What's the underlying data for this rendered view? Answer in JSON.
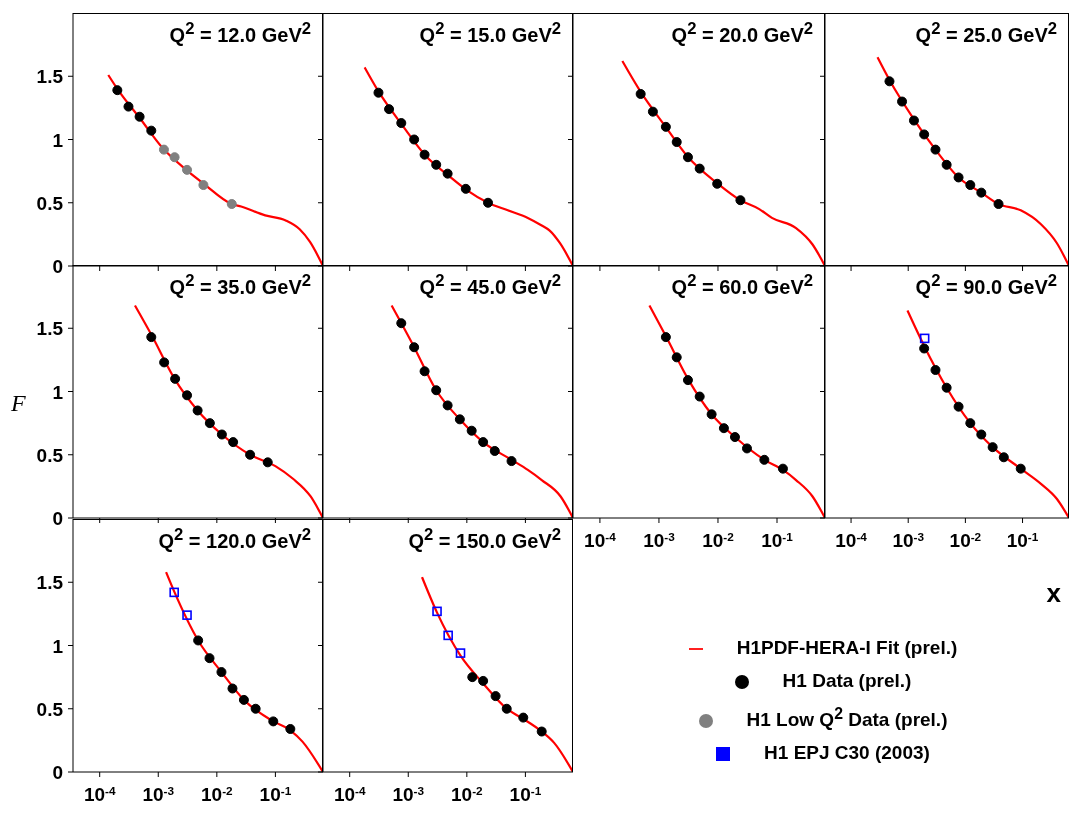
{
  "chart_data": [
    {
      "type": "scatter",
      "title": "Q$^{2}$ = 12.0 GeV$^{2}$",
      "log": "x",
      "xlim": [
        3.5e-05,
        0.65
      ],
      "ylim": [
        0,
        2
      ],
      "xticks": [
        {
          "value": 0.0001,
          "label": null
        },
        {
          "value": 0.001,
          "label": null
        },
        {
          "value": 0.01,
          "label": null
        },
        {
          "value": 0.1,
          "label": null
        }
      ],
      "yticks": [
        0,
        0.5,
        1,
        1.5
      ],
      "tick_labels": "y",
      "series": [
        {
          "type": "line",
          "color": "#ff0000",
          "x": [
            0.00014,
            0.0002,
            0.0005,
            0.0012,
            0.003,
            0.006,
            0.018,
            0.026,
            0.067,
            0.15,
            0.26,
            0.39,
            0.65
          ],
          "values": [
            1.51,
            1.4,
            1.16,
            0.93,
            0.76,
            0.65,
            0.49,
            0.47,
            0.4,
            0.36,
            0.29,
            0.19,
            0
          ]
        },
        {
          "marker": "circle",
          "color": "#000000",
          "x": [
            0.0002,
            0.00031,
            0.00048,
            0.00076
          ],
          "values": [
            1.39,
            1.26,
            1.18,
            1.07
          ]
        },
        {
          "marker": "circle",
          "color": "#808080",
          "x": [
            0.00125,
            0.0019,
            0.0031,
            0.0059,
            0.018
          ],
          "values": [
            0.92,
            0.86,
            0.76,
            0.64,
            0.49
          ]
        }
      ]
    },
    {
      "type": "scatter",
      "title": "Q$^{2}$ = 15.0 GeV$^{2}$",
      "log": "x",
      "xlim": [
        3.5e-05,
        0.65
      ],
      "ylim": [
        0,
        2
      ],
      "xticks": [
        {
          "value": 0.0001,
          "label": null
        },
        {
          "value": 0.001,
          "label": null
        },
        {
          "value": 0.01,
          "label": null
        },
        {
          "value": 0.1,
          "label": null
        }
      ],
      "yticks": [
        0,
        0.5,
        1,
        1.5
      ],
      "tick_labels": false,
      "series": [
        {
          "type": "line",
          "color": "#ff0000",
          "x": [
            0.00018,
            0.00031,
            0.0008,
            0.002,
            0.005,
            0.01,
            0.023,
            0.05,
            0.11,
            0.19,
            0.26,
            0.39,
            0.65
          ],
          "values": [
            1.57,
            1.38,
            1.11,
            0.87,
            0.71,
            0.6,
            0.5,
            0.44,
            0.38,
            0.32,
            0.28,
            0.18,
            0
          ]
        },
        {
          "marker": "circle",
          "color": "#000000",
          "x": [
            0.00031,
            0.00047,
            0.00076,
            0.00126,
            0.0019,
            0.003,
            0.0047,
            0.0096,
            0.023
          ],
          "values": [
            1.37,
            1.24,
            1.13,
            1.0,
            0.88,
            0.8,
            0.73,
            0.61,
            0.5
          ]
        }
      ]
    },
    {
      "type": "scatter",
      "title": "Q$^{2}$ = 20.0 GeV$^{2}$",
      "log": "x",
      "xlim": [
        3.5e-05,
        0.65
      ],
      "ylim": [
        0,
        2
      ],
      "xticks": [
        {
          "value": 0.0001,
          "label": null
        },
        {
          "value": 0.001,
          "label": null
        },
        {
          "value": 0.01,
          "label": null
        },
        {
          "value": 0.1,
          "label": null
        }
      ],
      "yticks": [
        0,
        0.5,
        1,
        1.5
      ],
      "tick_labels": false,
      "series": [
        {
          "type": "line",
          "color": "#ff0000",
          "x": [
            0.00024,
            0.0005,
            0.0013,
            0.003,
            0.01,
            0.024,
            0.05,
            0.082,
            0.21,
            0.4,
            0.65
          ],
          "values": [
            1.62,
            1.37,
            1.1,
            0.87,
            0.65,
            0.52,
            0.45,
            0.38,
            0.3,
            0.17,
            0
          ]
        },
        {
          "marker": "circle",
          "color": "#000000",
          "x": [
            0.00049,
            0.00079,
            0.00131,
            0.002,
            0.0031,
            0.0049,
            0.0097,
            0.024
          ],
          "values": [
            1.36,
            1.22,
            1.1,
            0.98,
            0.86,
            0.77,
            0.65,
            0.52
          ]
        }
      ]
    },
    {
      "type": "scatter",
      "title": "Q$^{2}$ = 25.0 GeV$^{2}$",
      "log": "x",
      "xlim": [
        3.5e-05,
        0.65
      ],
      "ylim": [
        0,
        2
      ],
      "xticks": [
        {
          "value": 0.0001,
          "label": null
        },
        {
          "value": 0.001,
          "label": null
        },
        {
          "value": 0.01,
          "label": null
        },
        {
          "value": 0.1,
          "label": null
        }
      ],
      "yticks": [
        0,
        0.5,
        1,
        1.5
      ],
      "tick_labels": false,
      "series": [
        {
          "type": "line",
          "color": "#ff0000",
          "x": [
            0.00029,
            0.00047,
            0.0013,
            0.003,
            0.0076,
            0.019,
            0.038,
            0.093,
            0.21,
            0.4,
            0.65
          ],
          "values": [
            1.65,
            1.47,
            1.15,
            0.92,
            0.7,
            0.58,
            0.49,
            0.44,
            0.33,
            0.18,
            0
          ]
        },
        {
          "marker": "circle",
          "color": "#000000",
          "x": [
            0.00047,
            0.00078,
            0.00126,
            0.0019,
            0.003,
            0.0047,
            0.0076,
            0.0122,
            0.019,
            0.038
          ],
          "values": [
            1.46,
            1.3,
            1.15,
            1.04,
            0.92,
            0.8,
            0.7,
            0.64,
            0.58,
            0.49
          ]
        }
      ]
    },
    {
      "type": "scatter",
      "title": "Q$^{2}$ = 35.0 GeV$^{2}$",
      "log": "x",
      "xlim": [
        3.5e-05,
        0.65
      ],
      "ylim": [
        0,
        2
      ],
      "xticks": [
        {
          "value": 0.0001,
          "label": null
        },
        {
          "value": 0.001,
          "label": null
        },
        {
          "value": 0.01,
          "label": null
        },
        {
          "value": 0.1,
          "label": null
        }
      ],
      "yticks": [
        0,
        0.5,
        1,
        1.5
      ],
      "tick_labels": "y",
      "ylabel": "F",
      "series": [
        {
          "type": "line",
          "color": "#ff0000",
          "x": [
            0.0004,
            0.00076,
            0.0019,
            0.0047,
            0.0122,
            0.037,
            0.1,
            0.2,
            0.4,
            0.65
          ],
          "values": [
            1.68,
            1.45,
            1.1,
            0.85,
            0.66,
            0.5,
            0.41,
            0.31,
            0.17,
            0
          ]
        },
        {
          "marker": "circle",
          "color": "#000000",
          "x": [
            0.00076,
            0.00126,
            0.00194,
            0.0031,
            0.0047,
            0.0076,
            0.0122,
            0.019,
            0.037,
            0.074
          ],
          "values": [
            1.43,
            1.23,
            1.1,
            0.97,
            0.85,
            0.75,
            0.66,
            0.6,
            0.5,
            0.44
          ]
        }
      ]
    },
    {
      "type": "scatter",
      "title": "Q$^{2}$ = 45.0 GeV$^{2}$",
      "log": "x",
      "xlim": [
        3.5e-05,
        0.65
      ],
      "ylim": [
        0,
        2
      ],
      "xticks": [
        {
          "value": 0.0001,
          "label": null
        },
        {
          "value": 0.001,
          "label": null
        },
        {
          "value": 0.01,
          "label": null
        },
        {
          "value": 0.1,
          "label": null
        }
      ],
      "yticks": [
        0,
        0.5,
        1,
        1.5
      ],
      "tick_labels": false,
      "series": [
        {
          "type": "line",
          "color": "#ff0000",
          "x": [
            0.00052,
            0.0012,
            0.003,
            0.0076,
            0.019,
            0.058,
            0.11,
            0.19,
            0.4,
            0.65
          ],
          "values": [
            1.68,
            1.37,
            1.01,
            0.78,
            0.6,
            0.46,
            0.38,
            0.3,
            0.17,
            0
          ]
        },
        {
          "marker": "circle",
          "color": "#000000",
          "x": [
            0.00076,
            0.00126,
            0.0019,
            0.003,
            0.0047,
            0.0076,
            0.0121,
            0.019,
            0.03,
            0.058
          ],
          "values": [
            1.54,
            1.35,
            1.16,
            1.01,
            0.89,
            0.78,
            0.69,
            0.6,
            0.53,
            0.45
          ]
        }
      ]
    },
    {
      "type": "scatter",
      "title": "Q$^{2}$ = 60.0 GeV$^{2}$",
      "log": "x",
      "xlim": [
        3.5e-05,
        0.65
      ],
      "ylim": [
        0,
        2
      ],
      "xticks": [
        {
          "value": 0.0001,
          "label": "10$^{-4}$"
        },
        {
          "value": 0.001,
          "label": "10$^{-3}$"
        },
        {
          "value": 0.01,
          "label": "10$^{-2}$"
        },
        {
          "value": 0.1,
          "label": "10$^{-1}$"
        }
      ],
      "yticks": [
        0,
        0.5,
        1,
        1.5
      ],
      "tick_labels": "x",
      "series": [
        {
          "type": "line",
          "color": "#ff0000",
          "x": [
            0.00069,
            0.0013,
            0.0031,
            0.0078,
            0.0194,
            0.061,
            0.126,
            0.21,
            0.4,
            0.65
          ],
          "values": [
            1.68,
            1.44,
            1.1,
            0.82,
            0.64,
            0.46,
            0.38,
            0.3,
            0.17,
            0
          ]
        },
        {
          "marker": "circle",
          "color": "#000000",
          "x": [
            0.00131,
            0.002,
            0.0031,
            0.0049,
            0.0078,
            0.0126,
            0.0194,
            0.031,
            0.061,
            0.126
          ],
          "values": [
            1.43,
            1.27,
            1.09,
            0.96,
            0.82,
            0.71,
            0.64,
            0.55,
            0.46,
            0.39
          ]
        }
      ]
    },
    {
      "type": "scatter",
      "title": "Q$^{2}$ = 90.0 GeV$^{2}$",
      "log": "x",
      "xlim": [
        3.5e-05,
        0.65
      ],
      "ylim": [
        0,
        2
      ],
      "xticks": [
        {
          "value": 0.0001,
          "label": "10$^{-4}$"
        },
        {
          "value": 0.001,
          "label": "10$^{-3}$"
        },
        {
          "value": 0.01,
          "label": "10$^{-2}$"
        },
        {
          "value": 0.1,
          "label": "10$^{-1}$"
        }
      ],
      "yticks": [
        0,
        0.5,
        1,
        1.5
      ],
      "tick_labels": "x",
      "xlabel": "x",
      "series": [
        {
          "type": "line",
          "color": "#ff0000",
          "x": [
            0.00097,
            0.0019,
            0.0047,
            0.0122,
            0.03,
            0.093,
            0.21,
            0.4,
            0.65
          ],
          "values": [
            1.64,
            1.36,
            1.03,
            0.75,
            0.56,
            0.39,
            0.27,
            0.15,
            0
          ]
        },
        {
          "marker": "circle",
          "color": "#000000",
          "x": [
            0.0019,
            0.003,
            0.0047,
            0.0076,
            0.0122,
            0.019,
            0.03,
            0.047,
            0.093
          ],
          "values": [
            1.34,
            1.17,
            1.03,
            0.88,
            0.75,
            0.66,
            0.56,
            0.48,
            0.39
          ]
        },
        {
          "marker": "square",
          "color": "#0000ff",
          "x": [
            0.00194
          ],
          "values": [
            1.42
          ]
        }
      ]
    },
    {
      "type": "scatter",
      "title": "Q$^{2}$ = 120.0 GeV$^{2}$",
      "log": "x",
      "xlim": [
        3.5e-05,
        0.65
      ],
      "ylim": [
        0,
        2
      ],
      "xticks": [
        {
          "value": 0.0001,
          "label": "10$^{-4}$"
        },
        {
          "value": 0.001,
          "label": "10$^{-3}$"
        },
        {
          "value": 0.01,
          "label": "10$^{-2}$"
        },
        {
          "value": 0.1,
          "label": "10$^{-1}$"
        }
      ],
      "yticks": [
        0,
        0.5,
        1,
        1.5
      ],
      "series": [
        {
          "type": "line",
          "color": "#ff0000",
          "x": [
            0.00136,
            0.0019,
            0.0048,
            0.012,
            0.029,
            0.092,
            0.18,
            0.29,
            0.65
          ],
          "values": [
            1.58,
            1.42,
            1.04,
            0.79,
            0.57,
            0.4,
            0.33,
            0.24,
            0
          ]
        },
        {
          "marker": "circle",
          "color": "#000000",
          "x": [
            0.0048,
            0.0075,
            0.012,
            0.0185,
            0.029,
            0.046,
            0.092,
            0.18
          ],
          "values": [
            1.04,
            0.9,
            0.79,
            0.66,
            0.57,
            0.5,
            0.4,
            0.34
          ]
        },
        {
          "marker": "square",
          "color": "#0000ff",
          "x": [
            0.00187,
            0.0031
          ],
          "values": [
            1.42,
            1.24
          ]
        }
      ]
    },
    {
      "type": "scatter",
      "title": "Q$^{2}$ = 150.0 GeV$^{2}$",
      "log": "x",
      "xlim": [
        3.5e-05,
        0.65
      ],
      "ylim": [
        0,
        2
      ],
      "xticks": [
        {
          "value": 0.0001,
          "label": "10$^{-4}$"
        },
        {
          "value": 0.001,
          "label": "10$^{-3}$"
        },
        {
          "value": 0.01,
          "label": "10$^{-2}$"
        },
        {
          "value": 0.1,
          "label": "10$^{-1}$"
        }
      ],
      "yticks": [
        0,
        0.5,
        1,
        1.5
      ],
      "tick_labels": "x",
      "legend": "right",
      "series": [
        {
          "name": "H1PDF-HERA-I Fit (prel.)",
          "type": "line",
          "color": "#ff0000",
          "x": [
            0.00172,
            0.0031,
            0.0078,
            0.019,
            0.048,
            0.092,
            0.19,
            0.31,
            0.65
          ],
          "values": [
            1.54,
            1.26,
            0.92,
            0.7,
            0.5,
            0.42,
            0.32,
            0.23,
            0
          ]
        },
        {
          "name": "H1 Data (prel.)",
          "marker": "circle",
          "color": "#000000",
          "x": [
            0.0124,
            0.019,
            0.031,
            0.048,
            0.092,
            0.19
          ],
          "values": [
            0.75,
            0.72,
            0.6,
            0.5,
            0.43,
            0.32
          ]
        },
        {
          "name": "H1 Low Q$^{2}$ Data (prel.)",
          "marker": "circle",
          "color": "#808080"
        },
        {
          "name": "H1 EPJ C30 (2003)",
          "marker": "square",
          "color": "#0000ff",
          "x": [
            0.0031,
            0.0048,
            0.0078
          ],
          "values": [
            1.27,
            1.08,
            0.94
          ]
        }
      ]
    }
  ]
}
